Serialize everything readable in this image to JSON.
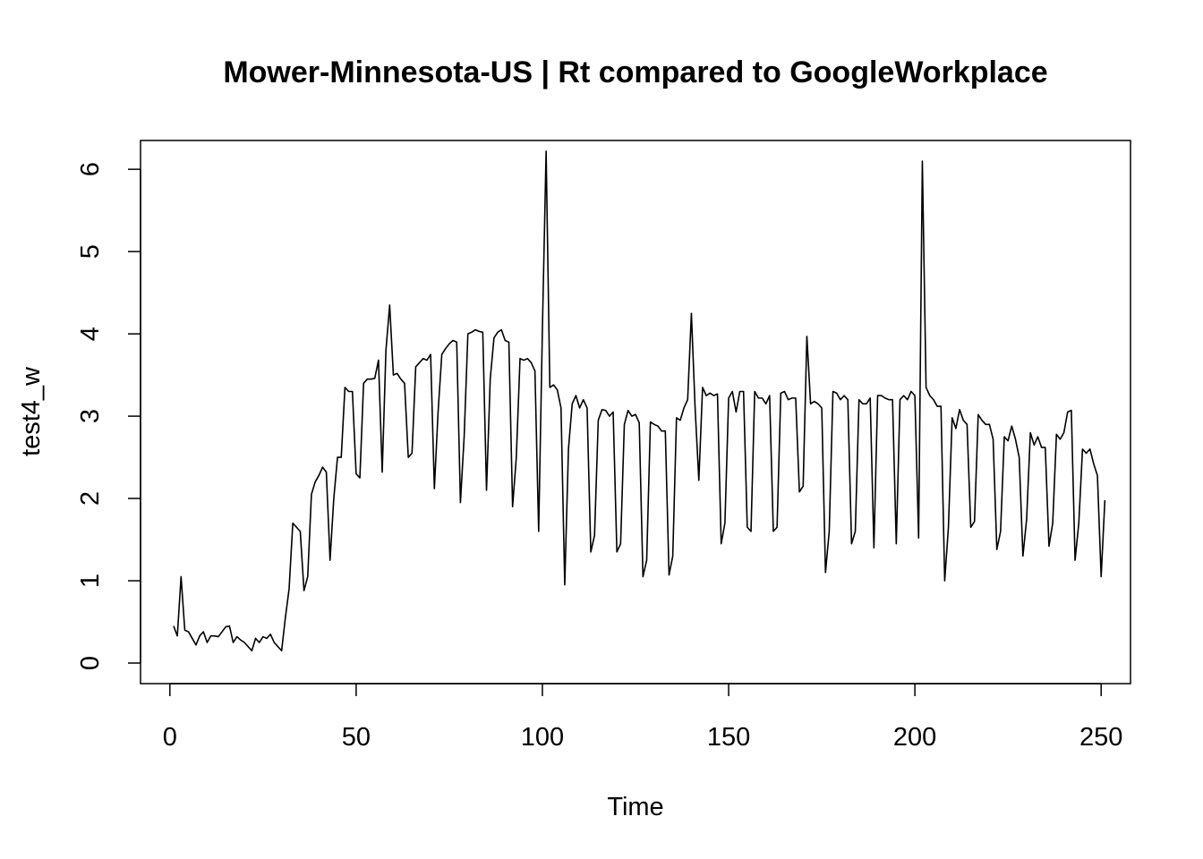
{
  "chart_data": {
    "type": "line",
    "title": "Mower-Minnesota-US | Rt compared to GoogleWorkplace",
    "xlabel": "Time",
    "ylabel": "test4_w",
    "xlim": [
      -7.88,
      257.88
    ],
    "ylim": [
      -0.25,
      6.35
    ],
    "xticks": [
      0,
      50,
      100,
      150,
      200,
      250
    ],
    "yticks": [
      0,
      1,
      2,
      3,
      4,
      5,
      6
    ],
    "grid": false,
    "line_color": "#000000",
    "x_start": 1,
    "values": [
      0.45,
      0.33,
      1.05,
      0.4,
      0.38,
      0.3,
      0.22,
      0.33,
      0.38,
      0.25,
      0.33,
      0.33,
      0.32,
      0.38,
      0.44,
      0.45,
      0.25,
      0.32,
      0.28,
      0.25,
      0.2,
      0.15,
      0.3,
      0.25,
      0.32,
      0.3,
      0.35,
      0.25,
      0.2,
      0.15,
      0.55,
      0.9,
      1.7,
      1.65,
      1.6,
      0.88,
      1.05,
      2.05,
      2.2,
      2.28,
      2.38,
      2.32,
      1.25,
      2.0,
      2.5,
      2.5,
      3.35,
      3.3,
      3.3,
      2.3,
      2.25,
      3.4,
      3.45,
      3.45,
      3.46,
      3.68,
      2.32,
      3.8,
      4.35,
      3.5,
      3.52,
      3.45,
      3.4,
      2.5,
      2.55,
      3.6,
      3.65,
      3.7,
      3.68,
      3.75,
      2.12,
      3.05,
      3.75,
      3.82,
      3.88,
      3.92,
      3.9,
      1.95,
      2.75,
      4.0,
      4.02,
      4.05,
      4.03,
      4.02,
      2.1,
      3.45,
      3.95,
      4.02,
      4.05,
      3.92,
      3.9,
      1.9,
      2.5,
      3.7,
      3.68,
      3.7,
      3.65,
      3.55,
      1.6,
      4.05,
      6.22,
      3.35,
      3.38,
      3.32,
      3.1,
      0.95,
      2.6,
      3.15,
      3.25,
      3.1,
      3.2,
      3.1,
      1.35,
      1.55,
      2.95,
      3.08,
      3.07,
      3.0,
      3.05,
      1.35,
      1.45,
      2.9,
      3.07,
      3.0,
      3.02,
      2.92,
      1.05,
      1.25,
      2.93,
      2.9,
      2.88,
      2.82,
      2.82,
      1.07,
      1.3,
      2.98,
      2.95,
      3.1,
      3.2,
      4.25,
      3.1,
      2.22,
      3.35,
      3.25,
      3.28,
      3.25,
      3.27,
      1.45,
      1.7,
      3.22,
      3.3,
      3.05,
      3.3,
      3.3,
      1.65,
      1.6,
      3.3,
      3.22,
      3.22,
      3.15,
      3.25,
      1.6,
      1.65,
      3.28,
      3.3,
      3.2,
      3.22,
      3.22,
      2.08,
      2.15,
      3.97,
      3.15,
      3.18,
      3.15,
      3.1,
      1.1,
      1.6,
      3.3,
      3.28,
      3.2,
      3.25,
      3.2,
      1.45,
      1.6,
      3.2,
      3.15,
      3.15,
      3.22,
      1.4,
      3.25,
      3.25,
      3.22,
      3.2,
      3.2,
      1.45,
      3.2,
      3.25,
      3.2,
      3.3,
      3.25,
      1.52,
      6.1,
      3.35,
      3.25,
      3.2,
      3.12,
      3.12,
      1.0,
      1.65,
      2.98,
      2.85,
      3.08,
      2.95,
      2.9,
      1.65,
      1.72,
      3.02,
      2.95,
      2.9,
      2.9,
      2.72,
      1.38,
      1.6,
      2.75,
      2.7,
      2.88,
      2.72,
      2.5,
      1.3,
      1.75,
      2.8,
      2.65,
      2.75,
      2.62,
      2.62,
      1.42,
      1.7,
      2.78,
      2.72,
      2.8,
      3.05,
      3.07,
      1.25,
      1.7,
      2.6,
      2.55,
      2.6,
      2.42,
      2.28,
      1.05,
      1.98
    ]
  }
}
